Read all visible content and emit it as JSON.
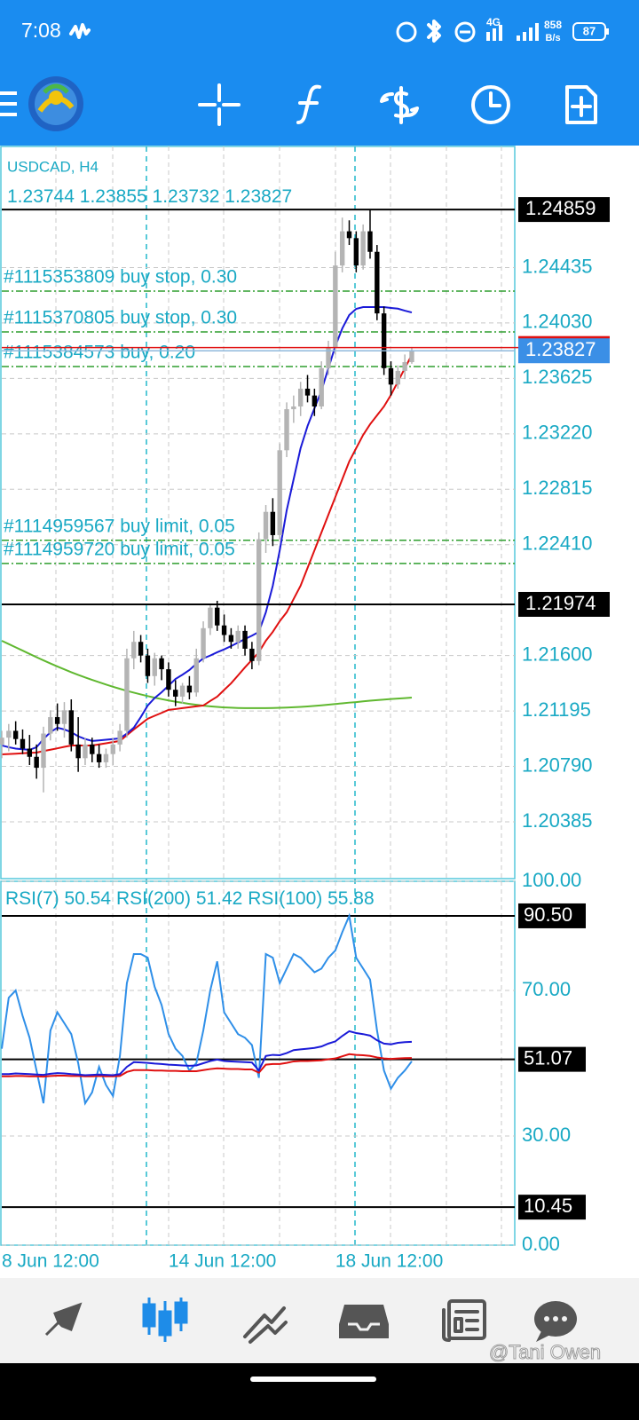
{
  "status_bar": {
    "time": "7:08",
    "network": "4G",
    "net_speed": "858",
    "net_unit": "B/s",
    "battery": "87"
  },
  "chart_data": [
    {
      "type": "candlestick",
      "title": "USDCAD, H4",
      "categories": [
        "8 Jun 12:00",
        null,
        null,
        null,
        null,
        null,
        null,
        null,
        null,
        null,
        null,
        null,
        null,
        null,
        null,
        null,
        null,
        null,
        null,
        null,
        null,
        null,
        null,
        null,
        "14 Jun 12:00",
        null,
        null,
        null,
        null,
        null,
        null,
        null,
        null,
        null,
        null,
        null,
        null,
        null,
        null,
        null,
        null,
        null,
        null,
        null,
        null,
        null,
        null,
        null,
        "18 Jun 12:00",
        null,
        null,
        null,
        null,
        null,
        null,
        null,
        null,
        null,
        null,
        null
      ],
      "ohlc": [
        [
          1.2095,
          1.2105,
          1.2085,
          1.21
        ],
        [
          1.21,
          1.211,
          1.209,
          1.2105
        ],
        [
          1.2105,
          1.2112,
          1.2095,
          1.2099
        ],
        [
          1.2099,
          1.2106,
          1.2088,
          1.2092
        ],
        [
          1.2092,
          1.2102,
          1.208,
          1.2086
        ],
        [
          1.2086,
          1.2095,
          1.207,
          1.2078
        ],
        [
          1.2078,
          1.2108,
          1.206,
          1.2103
        ],
        [
          1.2103,
          1.212,
          1.2098,
          1.2115
        ],
        [
          1.2115,
          1.2125,
          1.2105,
          1.211
        ],
        [
          1.211,
          1.2126,
          1.21,
          1.212
        ],
        [
          1.212,
          1.2128,
          1.209,
          1.2095
        ],
        [
          1.2095,
          1.2115,
          1.2075,
          1.2085
        ],
        [
          1.2085,
          1.21,
          1.208,
          1.2095
        ],
        [
          1.2095,
          1.21,
          1.2082,
          1.2088
        ],
        [
          1.2088,
          1.2095,
          1.2078,
          1.2082
        ],
        [
          1.2082,
          1.2092,
          1.2078,
          1.2088
        ],
        [
          1.2088,
          1.21,
          1.208,
          1.2095
        ],
        [
          1.2095,
          1.211,
          1.209,
          1.2105
        ],
        [
          1.2105,
          1.2165,
          1.21,
          1.2158
        ],
        [
          1.2158,
          1.2178,
          1.215,
          1.217
        ],
        [
          1.217,
          1.2175,
          1.2155,
          1.216
        ],
        [
          1.216,
          1.2165,
          1.214,
          1.2145
        ],
        [
          1.2145,
          1.2162,
          1.2138,
          1.2158
        ],
        [
          1.2158,
          1.216,
          1.2142,
          1.215
        ],
        [
          1.215,
          1.2155,
          1.213,
          1.2135
        ],
        [
          1.2135,
          1.2142,
          1.2123,
          1.213
        ],
        [
          1.213,
          1.214,
          1.2125,
          1.2138
        ],
        [
          1.2138,
          1.2145,
          1.2128,
          1.2133
        ],
        [
          1.2133,
          1.2165,
          1.213,
          1.2158
        ],
        [
          1.2158,
          1.2185,
          1.2155,
          1.218
        ],
        [
          1.218,
          1.2198,
          1.2175,
          1.2195
        ],
        [
          1.2195,
          1.22,
          1.2178,
          1.2182
        ],
        [
          1.2182,
          1.219,
          1.217,
          1.2175
        ],
        [
          1.2175,
          1.218,
          1.2165,
          1.217
        ],
        [
          1.217,
          1.2182,
          1.2165,
          1.2178
        ],
        [
          1.2178,
          1.2182,
          1.216,
          1.2165
        ],
        [
          1.2165,
          1.217,
          1.215,
          1.2156
        ],
        [
          1.2156,
          1.225,
          1.2153,
          1.2245
        ],
        [
          1.2245,
          1.227,
          1.2235,
          1.2265
        ],
        [
          1.2265,
          1.2275,
          1.224,
          1.2248
        ],
        [
          1.2248,
          1.2315,
          1.2245,
          1.231
        ],
        [
          1.231,
          1.2345,
          1.2305,
          1.234
        ],
        [
          1.234,
          1.235,
          1.233,
          1.2342
        ],
        [
          1.2342,
          1.236,
          1.2335,
          1.2355
        ],
        [
          1.2355,
          1.2365,
          1.2345,
          1.235
        ],
        [
          1.235,
          1.2355,
          1.2335,
          1.2342
        ],
        [
          1.2342,
          1.2375,
          1.234,
          1.237
        ],
        [
          1.237,
          1.239,
          1.2365,
          1.2385
        ],
        [
          1.2385,
          1.2455,
          1.238,
          1.2445
        ],
        [
          1.2445,
          1.248,
          1.244,
          1.247
        ],
        [
          1.247,
          1.2478,
          1.246,
          1.2465
        ],
        [
          1.2465,
          1.247,
          1.244,
          1.2445
        ],
        [
          1.2445,
          1.2475,
          1.2442,
          1.247
        ],
        [
          1.247,
          1.24859,
          1.245,
          1.2455
        ],
        [
          1.2455,
          1.246,
          1.2405,
          1.241
        ],
        [
          1.241,
          1.2415,
          1.2365,
          1.237
        ],
        [
          1.237,
          1.2375,
          1.235,
          1.2358
        ],
        [
          1.2358,
          1.2372,
          1.2355,
          1.2368
        ],
        [
          1.2368,
          1.238,
          1.2362,
          1.23744
        ],
        [
          1.23744,
          1.23855,
          1.23732,
          1.23827
        ]
      ],
      "bull_color": "#b4b4b4",
      "bear_color": "#000000",
      "series": [
        {
          "color": "#60b830",
          "values": [
            1.21708,
            1.21684,
            1.2166,
            1.21636,
            1.21612,
            1.21588,
            1.21565,
            1.21542,
            1.2152,
            1.21499,
            1.21478,
            1.21459,
            1.2144,
            1.21422,
            1.21405,
            1.21388,
            1.21372,
            1.21357,
            1.21342,
            1.21329,
            1.21316,
            1.21304,
            1.21292,
            1.21282,
            1.21272,
            1.21263,
            1.21255,
            1.21247,
            1.2124,
            1.21234,
            1.21229,
            1.21225,
            1.21221,
            1.21219,
            1.21217,
            1.21216,
            1.21216,
            1.21216,
            1.21216,
            1.21217,
            1.21218,
            1.2122,
            1.21222,
            1.21225,
            1.21228,
            1.21232,
            1.21236,
            1.21241,
            1.21246,
            1.21251,
            1.21256,
            1.2126,
            1.21265,
            1.2127,
            1.21274,
            1.21278,
            1.21282,
            1.21286,
            1.21289,
            1.21293
          ]
        },
        {
          "color": "#e01010",
          "values": [
            1.20878,
            1.2088,
            1.20883,
            1.20886,
            1.20889,
            1.20891,
            1.20902,
            1.20912,
            1.20922,
            1.20933,
            1.20943,
            1.20943,
            1.20943,
            1.20943,
            1.20951,
            1.20959,
            1.20968,
            1.20976,
            1.21018,
            1.2106,
            1.21099,
            1.21138,
            1.2116,
            1.21181,
            1.21203,
            1.21209,
            1.21216,
            1.21222,
            1.21229,
            1.21235,
            1.21268,
            1.213,
            1.21349,
            1.21397,
            1.21455,
            1.21514,
            1.21569,
            1.21624,
            1.21708,
            1.21773,
            1.21851,
            1.21916,
            1.22013,
            1.2211,
            1.2224,
            1.22369,
            1.22499,
            1.22629,
            1.22758,
            1.22888,
            1.23018,
            1.23115,
            1.23212,
            1.2329,
            1.23355,
            1.2342,
            1.23504,
            1.23601,
            1.23699,
            1.23796
          ]
        },
        {
          "color": "#1a1ad8",
          "values": [
            1.20943,
            1.2093,
            1.2092,
            1.20915,
            1.20911,
            1.2093,
            1.2099,
            1.2104,
            1.21073,
            1.2106,
            1.2104,
            1.2101,
            1.2099,
            1.20976,
            1.2098,
            1.20985,
            1.2099,
            1.20995,
            1.2103,
            1.21073,
            1.2115,
            1.21235,
            1.2129,
            1.21332,
            1.2138,
            1.21429,
            1.2146,
            1.21494,
            1.2154,
            1.21579,
            1.216,
            1.21624,
            1.21645,
            1.21669,
            1.21695,
            1.21721,
            1.21745,
            1.21773,
            1.21916,
            1.2211,
            1.22369,
            1.22661,
            1.22888,
            1.23115,
            1.23277,
            1.23407,
            1.23536,
            1.23699,
            1.23861,
            1.2399,
            1.24088,
            1.24133,
            1.24146,
            1.24146,
            1.24146,
            1.24146,
            1.2414,
            1.24135,
            1.2412,
            1.24107
          ]
        }
      ],
      "ylim": [
        1.1997,
        1.2532
      ],
      "yticks": [
        1.24435,
        {
          "value": 1.2403,
          "label": "1.24030"
        },
        1.23625,
        {
          "value": 1.2322,
          "label": "1.23220"
        },
        1.22815,
        {
          "value": 1.2241,
          "label": "1.22410"
        },
        {
          "value": 1.216,
          "label": "1.21600"
        },
        1.21195,
        {
          "value": 1.2079,
          "label": "1.20790"
        },
        1.20385
      ],
      "grid": true,
      "price_lines": [
        1.24859,
        1.21974
      ],
      "ask": 1.2385,
      "orders": [
        {
          "label": "#1115353809 buy stop, 0.30",
          "price": 1.24263
        },
        {
          "label": "#1115370805 buy stop, 0.30",
          "price": 1.23965
        },
        {
          "label": "#1115384573 buy, 0.20",
          "price": 1.23712
        },
        {
          "label": "#1114959567 buy limit, 0.05",
          "price": 1.22442
        },
        {
          "label": "#1114959720 buy limit, 0.05",
          "price": 1.22273
        }
      ]
    },
    {
      "type": "line",
      "series": [
        {
          "name": "RSI(7)",
          "color": "#2f8fe8",
          "values": [
            54,
            68,
            70,
            63,
            57,
            48,
            39,
            59,
            64,
            61,
            58,
            50,
            39,
            42,
            49,
            44,
            41,
            52,
            72,
            80,
            80,
            79,
            71,
            66,
            58,
            54,
            52,
            48,
            50,
            59,
            70,
            78,
            64,
            61,
            58,
            57,
            55,
            46,
            80,
            79,
            72,
            76,
            80,
            79,
            77,
            75,
            76,
            79,
            81,
            86,
            90.5,
            79,
            76,
            73,
            59,
            48,
            43,
            46,
            48,
            50.54
          ]
        },
        {
          "name": "RSI(200)",
          "color": "#e01010",
          "values": [
            46.4,
            46.4,
            46.5,
            46.5,
            46.4,
            46.4,
            46.3,
            46.5,
            46.6,
            46.6,
            46.5,
            46.5,
            46.4,
            46.4,
            46.5,
            46.4,
            46.4,
            46.5,
            47.6,
            48.1,
            48.1,
            48.1,
            48,
            48,
            47.9,
            47.9,
            47.8,
            47.8,
            47.8,
            48.1,
            48.4,
            48.6,
            48.5,
            48.4,
            48.4,
            48.3,
            48.3,
            47.4,
            49.6,
            49.8,
            49.8,
            50.1,
            50.5,
            50.6,
            50.6,
            50.7,
            50.8,
            51.1,
            51.3,
            51.9,
            52.5,
            52.3,
            52.2,
            52,
            51.6,
            51.3,
            51.2,
            51.3,
            51.4,
            51.42
          ]
        },
        {
          "name": "RSI(100)",
          "color": "#1a1ad8",
          "values": [
            47,
            47,
            47.2,
            47.1,
            47,
            46.9,
            46.8,
            47.1,
            47.3,
            47.2,
            47,
            46.9,
            46.7,
            46.8,
            46.9,
            46.8,
            46.7,
            47,
            49,
            50.3,
            50.2,
            50.1,
            49.9,
            49.8,
            49.6,
            49.5,
            49.4,
            49.3,
            49.4,
            50,
            50.6,
            51,
            50.6,
            50.5,
            50.4,
            50.3,
            50.2,
            48,
            52,
            52.3,
            52.2,
            52.8,
            53.6,
            53.8,
            54,
            54.2,
            54.6,
            55.4,
            56,
            57.5,
            58.8,
            58.3,
            58,
            57.6,
            56.3,
            55.4,
            55.2,
            55.6,
            55.8,
            55.88
          ]
        }
      ],
      "ylim": [
        0,
        100
      ],
      "yticks": [
        {
          "value": 100,
          "label": "100.00"
        },
        {
          "value": 70,
          "label": "70.00"
        },
        {
          "value": 30,
          "label": "30.00"
        },
        {
          "value": 0,
          "label": "0.00"
        }
      ],
      "levels": [
        {
          "value": 90.5,
          "label": "90.50"
        },
        51.07,
        10.45
      ]
    }
  ],
  "watermark": "@Tani Owen"
}
